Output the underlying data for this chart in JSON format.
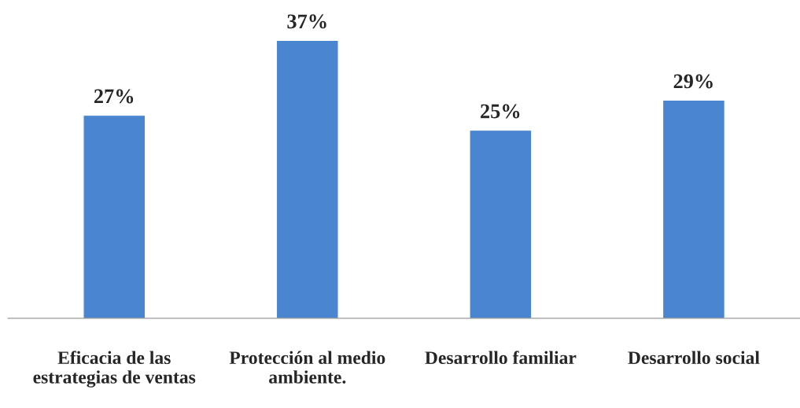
{
  "chart_data": {
    "type": "bar",
    "categories": [
      "Eficacia de las\nestrategias de ventas",
      "Protección al medio\nambiente.",
      "Desarrollo familiar",
      "Desarrollo social"
    ],
    "values": [
      27,
      37,
      25,
      29
    ],
    "value_labels": [
      "27%",
      "37%",
      "25%",
      "29%"
    ],
    "color": "#4a86d0",
    "grid": false,
    "legend": false
  }
}
